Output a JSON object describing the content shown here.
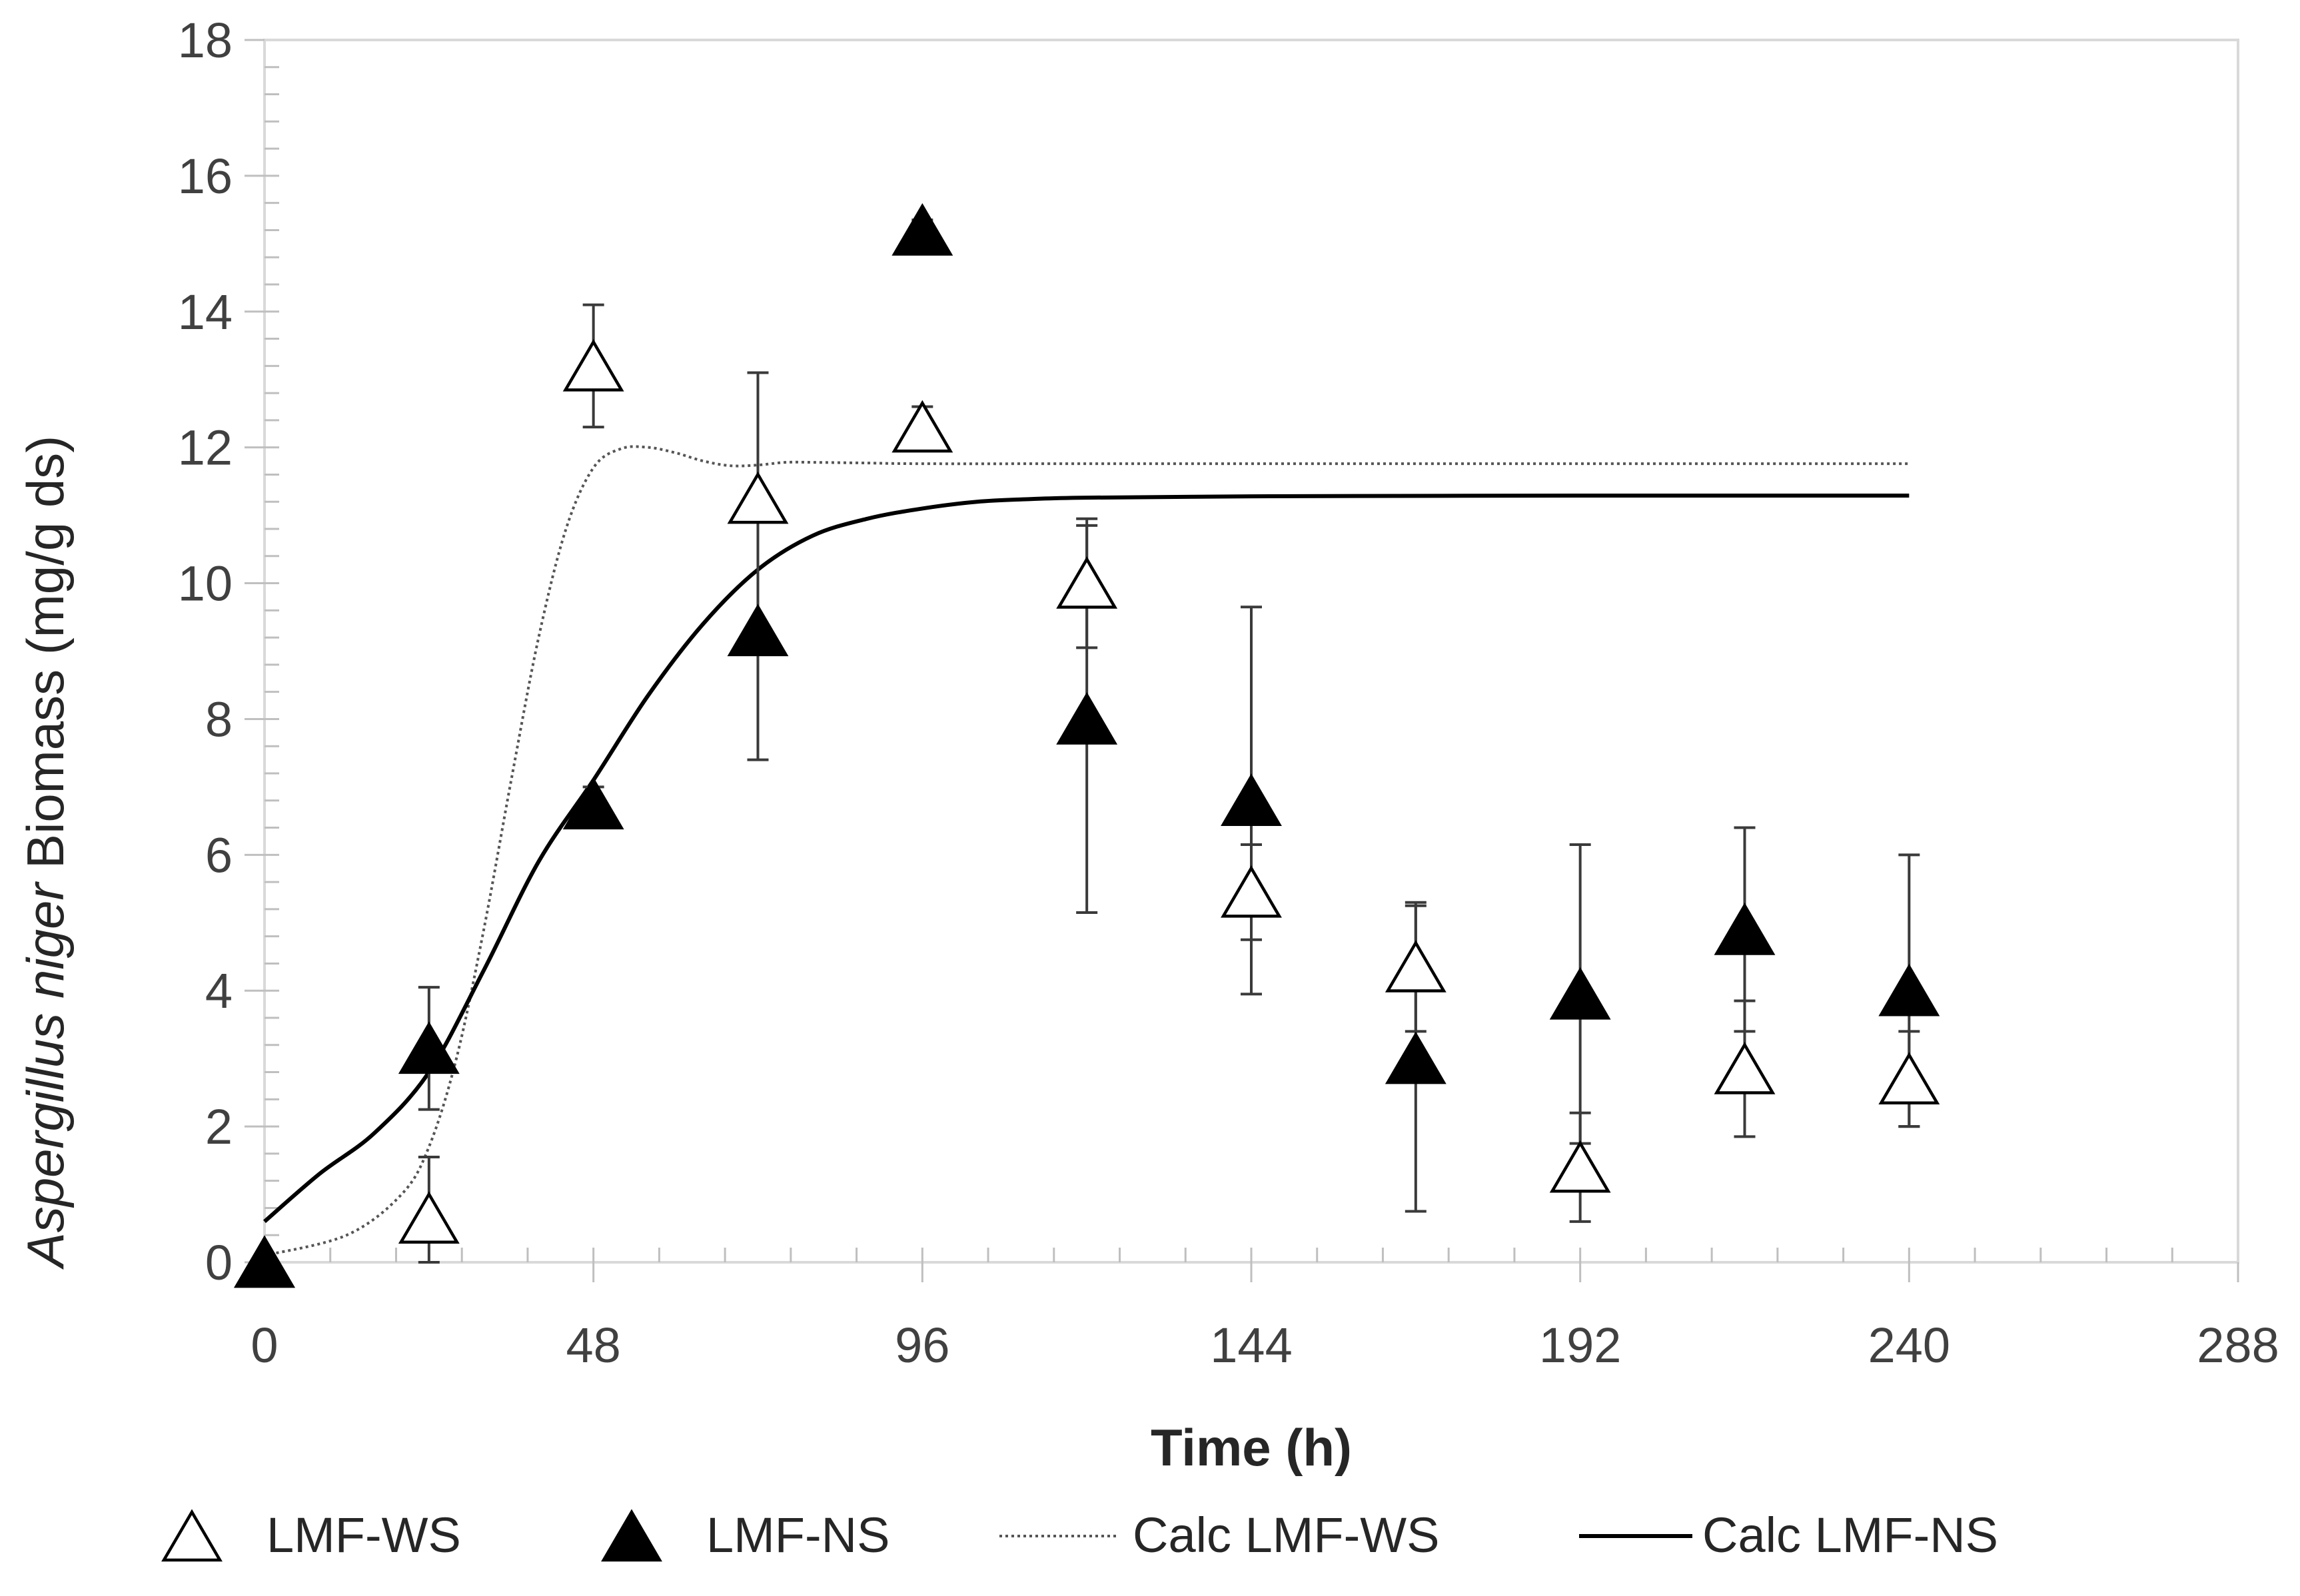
{
  "chart_data": {
    "type": "scatter",
    "title": "",
    "xlabel": "Time (h)",
    "ylabel_italic": "Aspergillus niger",
    "ylabel_rest": "Biomass (mg/g ds)",
    "xlim": [
      0,
      288
    ],
    "ylim": [
      0,
      18
    ],
    "xticks": [
      0,
      48,
      96,
      144,
      192,
      240,
      288
    ],
    "yticks": [
      0,
      2,
      4,
      6,
      8,
      10,
      12,
      14,
      16,
      18
    ],
    "x_minor_step": 9.6,
    "y_minor_step": 0.4,
    "grid": false,
    "legend_position": "bottom",
    "series": [
      {
        "name": "LMF-WS",
        "kind": "markers",
        "marker": "open-triangle",
        "x": [
          0,
          24,
          48,
          72,
          96,
          120,
          144,
          168,
          192,
          216,
          240
        ],
        "y": [
          0.0,
          0.65,
          13.2,
          11.25,
          12.3,
          10.0,
          5.45,
          4.35,
          1.4,
          2.85,
          2.7
        ],
        "err": [
          0.0,
          0.9,
          0.9,
          1.85,
          0.3,
          0.95,
          0.7,
          0.95,
          0.8,
          1.0,
          0.7
        ]
      },
      {
        "name": "LMF-NS",
        "kind": "markers",
        "marker": "filled-triangle",
        "x": [
          0,
          24,
          48,
          72,
          96,
          120,
          144,
          168,
          192,
          216,
          240
        ],
        "y": [
          0.0,
          3.15,
          6.75,
          9.3,
          15.2,
          8.0,
          6.8,
          3.0,
          3.95,
          4.9,
          4.0
        ],
        "err": [
          0.0,
          0.9,
          0.25,
          1.9,
          0.15,
          2.85,
          2.85,
          2.25,
          2.2,
          1.5,
          2.0
        ]
      },
      {
        "name": "Calc LMF-WS",
        "kind": "line",
        "style": "dotted",
        "x": [
          0,
          12,
          20,
          24,
          28,
          32,
          36,
          40,
          44,
          48,
          52,
          56,
          60,
          64,
          68,
          72,
          76,
          80,
          88,
          96,
          120,
          144,
          192,
          240
        ],
        "y": [
          0.1,
          0.4,
          1.0,
          1.7,
          3.0,
          4.9,
          7.1,
          9.2,
          10.8,
          11.7,
          11.98,
          12.0,
          11.92,
          11.8,
          11.73,
          11.74,
          11.78,
          11.78,
          11.77,
          11.76,
          11.76,
          11.76,
          11.76,
          11.76
        ]
      },
      {
        "name": "Calc LMF-NS",
        "kind": "line",
        "style": "solid",
        "x": [
          0,
          8,
          16,
          24,
          32,
          40,
          48,
          56,
          64,
          72,
          80,
          88,
          96,
          104,
          112,
          120,
          144,
          192,
          240
        ],
        "y": [
          0.6,
          1.3,
          1.9,
          2.8,
          4.3,
          5.9,
          7.1,
          8.35,
          9.4,
          10.2,
          10.7,
          10.95,
          11.1,
          11.2,
          11.24,
          11.26,
          11.28,
          11.29,
          11.29
        ]
      }
    ]
  }
}
